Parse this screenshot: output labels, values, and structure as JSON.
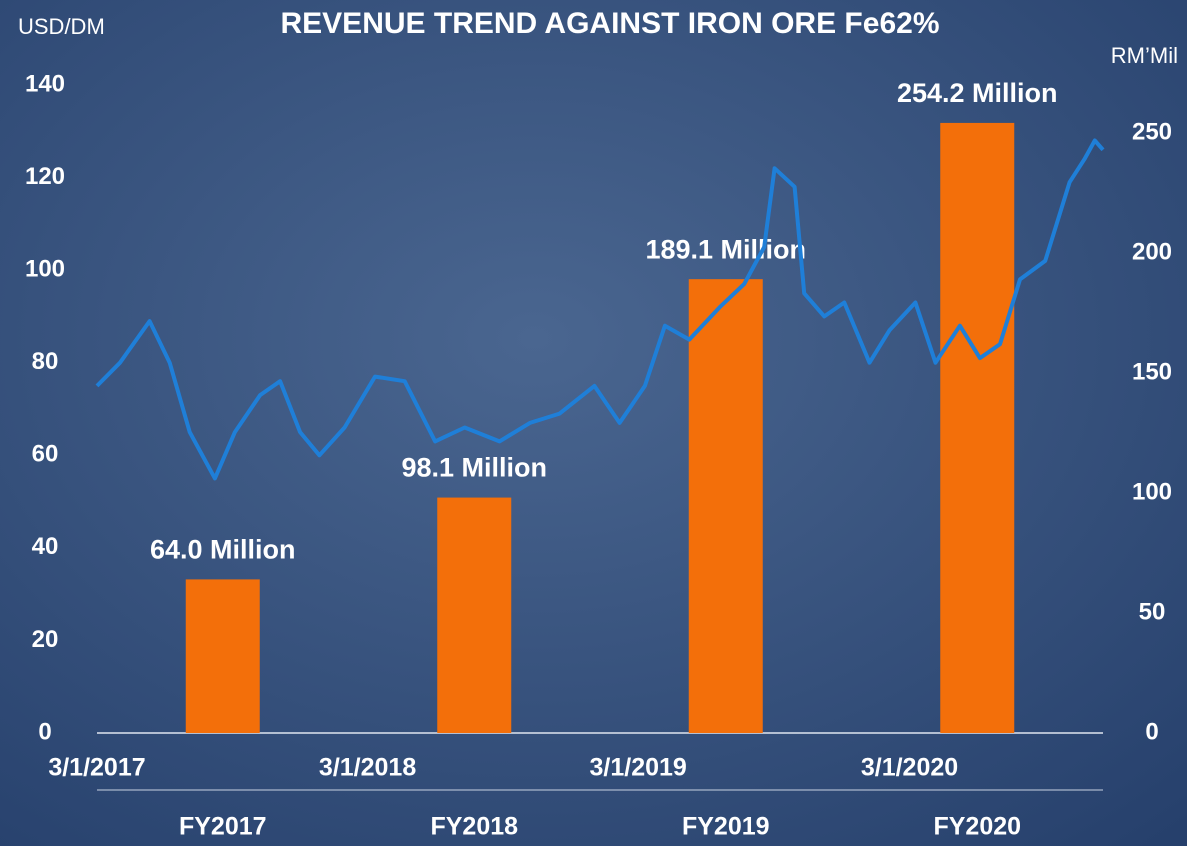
{
  "chart_data": [
    {
      "type": "bar",
      "title": "REVENUE TREND AGAINST IRON ORE Fe62%",
      "y_label": "RM’Mil",
      "categories": [
        "FY2017",
        "FY2018",
        "FY2019",
        "FY2020"
      ],
      "values": [
        64.0,
        98.1,
        189.1,
        254.2
      ],
      "value_labels": [
        "64.0 Million",
        "98.1 Million",
        "189.1 Million",
        "254.2 Million"
      ],
      "color": "#f36f0a",
      "ylim": [
        0,
        270
      ],
      "yticks": [
        0,
        50,
        100,
        150,
        200,
        250
      ]
    },
    {
      "type": "line",
      "y_label": "USD/DM",
      "x": [
        "2017-03-01",
        "2017-04-01",
        "2017-05-11",
        "2017-06-07",
        "2017-07-04",
        "2017-08-07",
        "2017-09-03",
        "2017-10-07",
        "2017-11-03",
        "2017-11-30",
        "2017-12-26",
        "2018-01-29",
        "2018-03-11",
        "2018-04-20",
        "2018-05-31",
        "2018-07-10",
        "2018-08-26",
        "2018-10-06",
        "2018-11-15",
        "2019-01-01",
        "2019-02-04",
        "2019-03-10",
        "2019-04-06",
        "2019-05-09",
        "2019-06-19",
        "2019-07-22",
        "2019-08-18",
        "2019-09-01",
        "2019-09-28",
        "2019-10-11",
        "2019-11-07",
        "2019-12-04",
        "2020-01-07",
        "2020-02-03",
        "2020-03-09",
        "2020-04-05",
        "2020-05-08",
        "2020-06-04",
        "2020-07-01",
        "2020-07-28",
        "2020-08-31",
        "2020-10-03",
        "2020-10-23",
        "2020-11-06",
        "2020-11-17"
      ],
      "values": [
        75,
        80,
        89,
        80,
        65,
        55,
        65,
        73,
        76,
        65,
        60,
        66,
        77,
        76,
        63,
        66,
        63,
        67,
        69,
        75,
        67,
        75,
        88,
        85,
        92,
        97,
        105,
        122,
        118,
        95,
        90,
        93,
        80,
        87,
        93,
        80,
        88,
        81,
        84,
        98,
        102,
        119,
        124,
        128,
        126
      ],
      "color": "#1f7fd8",
      "xlim": [
        "2017-03-01",
        "2020-11-17"
      ],
      "xticks": [
        {
          "value": "2017-03-01",
          "label": "3/1/2017"
        },
        {
          "value": "2018-03-01",
          "label": "3/1/2018"
        },
        {
          "value": "2019-03-01",
          "label": "3/1/2019"
        },
        {
          "value": "2020-03-01",
          "label": "3/1/2020"
        }
      ],
      "ylim": [
        0,
        140
      ],
      "yticks": [
        0,
        20,
        40,
        60,
        80,
        100,
        120,
        140
      ]
    }
  ]
}
